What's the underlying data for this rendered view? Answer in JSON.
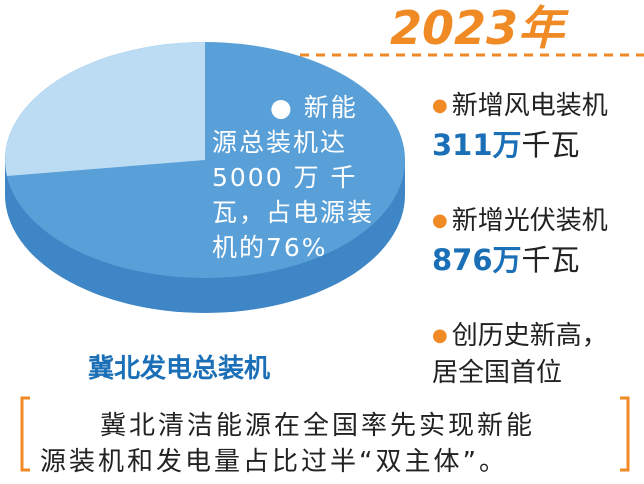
{
  "year": "2023年",
  "pie": {
    "label_lines": [
      "● 新能",
      "源总装机达",
      "5000 万 千",
      "瓦，占电源装",
      "机的76%"
    ],
    "caption": "冀北发电总装机"
  },
  "items": [
    {
      "title": "新增风电装机",
      "number": "311万",
      "unit": "千瓦"
    },
    {
      "title": "新增光伏装机",
      "number": "876万",
      "unit": "千瓦"
    },
    {
      "title": "创历史新高，",
      "number": "",
      "unit": "居全国首位"
    }
  ],
  "footer": {
    "lines": [
      "冀北清洁能源在全国率先实现新能",
      "源装机和发电量占比过半“双主体”。"
    ]
  }
}
